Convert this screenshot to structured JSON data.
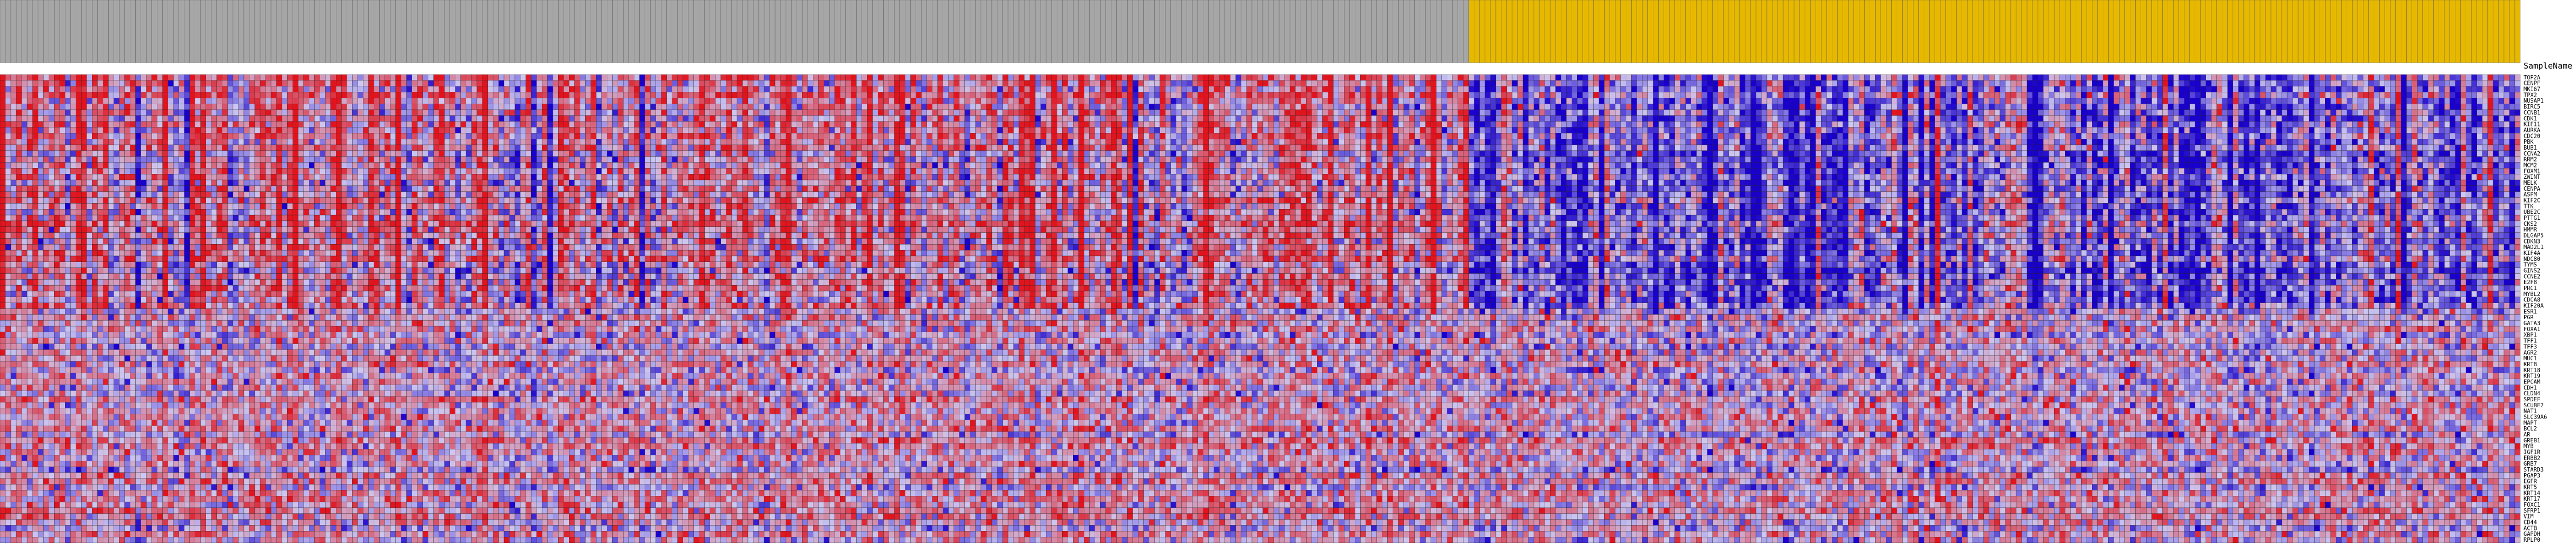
{
  "chart_data": {
    "type": "heatmap",
    "header_label": "SampleName",
    "column_groups": [
      {
        "name": "",
        "color": "#a6a6a6",
        "count": 271
      },
      {
        "name": "",
        "color": "#e6b800",
        "count": 194
      }
    ],
    "row_labels": [
      "TOP2A",
      "CENPF",
      "MKI67",
      "TPX2",
      "NUSAP1",
      "BIRC5",
      "CCNB1",
      "CDK1",
      "KIF11",
      "AURKA",
      "CDC20",
      "PBK",
      "BUB1",
      "CCNA2",
      "RRM2",
      "MCM2",
      "FOXM1",
      "ZWINT",
      "MELK",
      "CENPA",
      "ASPM",
      "KIF2C",
      "TTK",
      "UBE2C",
      "PTTG1",
      "CKS2",
      "HMMR",
      "DLGAP5",
      "CDKN3",
      "MAD2L1",
      "KIF4A",
      "NDC80",
      "TYMS",
      "GINS2",
      "CCNE2",
      "E2F8",
      "PRC1",
      "MYBL2",
      "CDCA8",
      "KIF20A",
      "ESR1",
      "PGR",
      "GATA3",
      "FOXA1",
      "XBP1",
      "TFF1",
      "TFF3",
      "AGR2",
      "MUC1",
      "KRT8",
      "KRT18",
      "KRT19",
      "EPCAM",
      "CDH1",
      "CLDN4",
      "SPDEF",
      "SCUBE2",
      "NAT1",
      "SLC39A6",
      "MAPT",
      "BCL2",
      "AR",
      "GREB1",
      "MYB",
      "IGF1R",
      "ERBB2",
      "GRB7",
      "STARD3",
      "PGAP3",
      "EGFR",
      "KRT5",
      "KRT14",
      "KRT17",
      "FOXC1",
      "SFRP1",
      "VIM",
      "CD44",
      "ACTB",
      "GAPDH",
      "RPLP0"
    ],
    "legend": null
  }
}
